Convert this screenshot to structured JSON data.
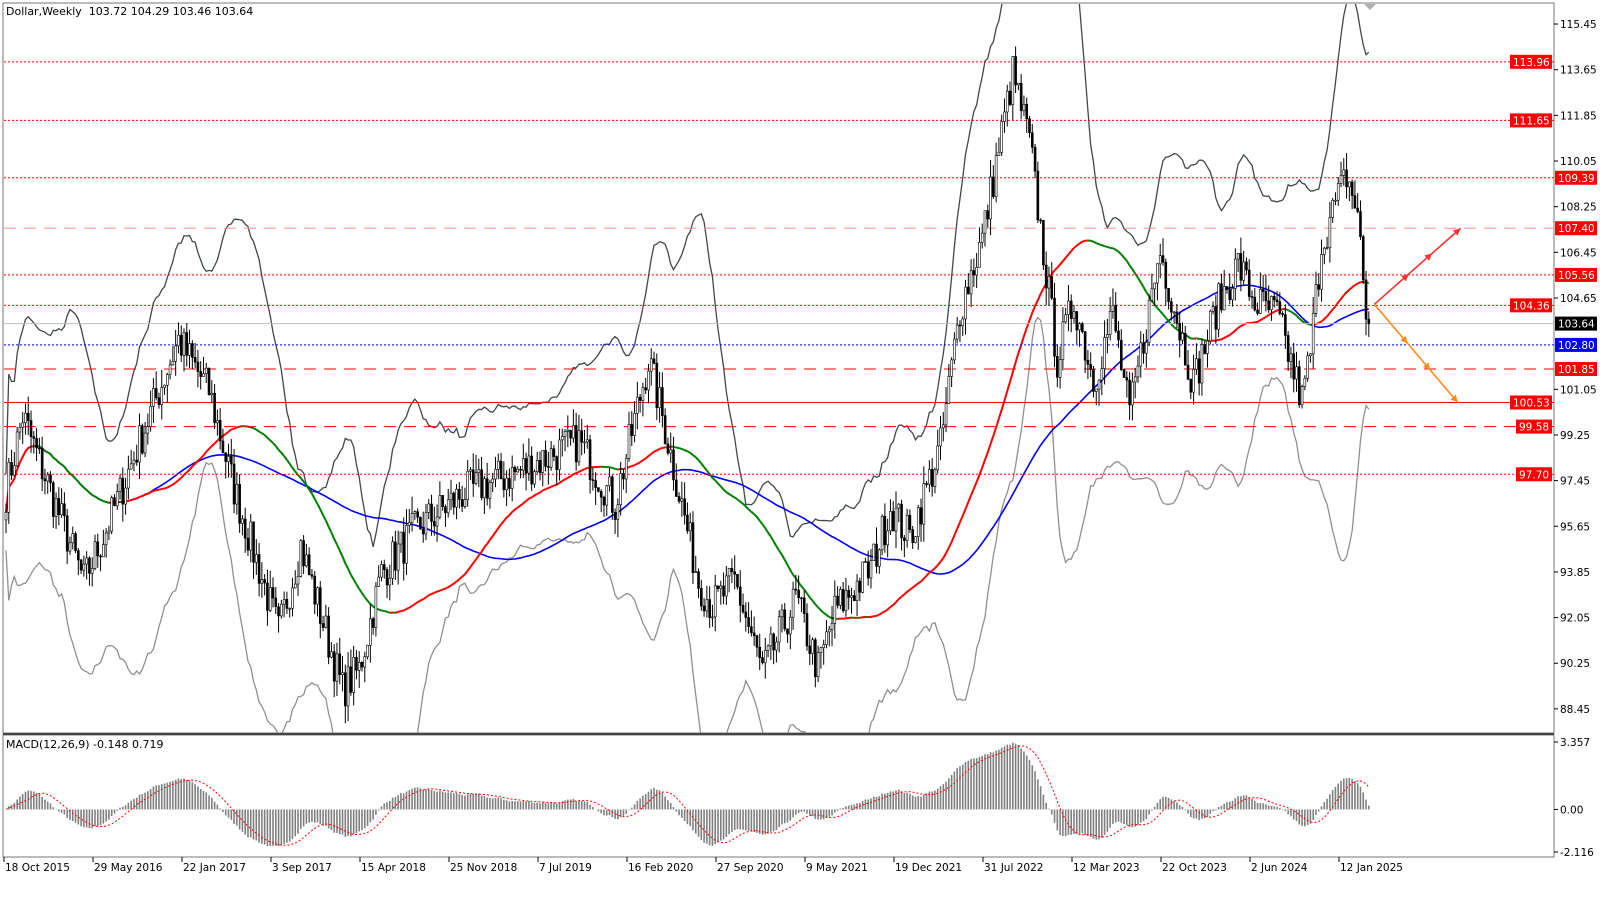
{
  "header": {
    "symbol_timeframe": "Dollar,Weekly",
    "ohlc": "103.72 104.29 103.46 103.64"
  },
  "macd": {
    "label": "MACD(12,26,9) -0.148 0.719",
    "params": [
      12,
      26,
      9
    ],
    "main": -0.148,
    "signal": 0.719
  },
  "colors": {
    "ma_rising": "#ff0000",
    "ma_falling": "#008000",
    "ma_long": "#0000ff",
    "band_upper": "#404848",
    "band_lower": "#909090",
    "level": "#ff0000",
    "support_blue": "#0000ff",
    "arrow_up": "#ff3030",
    "arrow_down": "#ff8c1a",
    "bars": "#000000"
  },
  "chart_data": {
    "type": "candlestick",
    "title": "Dollar,Weekly",
    "ylim": [
      87.5,
      116.24
    ],
    "grid": false,
    "price_axis_ticks": [
      "115.45",
      "113.65",
      "111.85",
      "110.05",
      "108.25",
      "106.45",
      "104.65",
      "101.05",
      "99.25",
      "97.45",
      "95.65",
      "93.85",
      "92.05",
      "90.25",
      "88.45"
    ],
    "macd_axis_ticks": [
      "3.357",
      "0.00",
      "-2.116"
    ],
    "macd_ylim": [
      -2.116,
      3.357
    ],
    "date_ticks": [
      "18 Oct 2015",
      "29 May 2016",
      "22 Jan 2017",
      "3 Sep 2017",
      "15 Apr 2018",
      "25 Nov 2018",
      "7 Jul 2019",
      "16 Feb 2020",
      "27 Sep 2020",
      "9 May 2021",
      "19 Dec 2021",
      "31 Jul 2022",
      "12 Mar 2023",
      "22 Oct 2023",
      "2 Jun 2024",
      "12 Jan 2025"
    ],
    "start_date": "2015-10-18",
    "approx_closes": [
      [
        "2015-10-18",
        97.0
      ],
      [
        "2015-11-29",
        100.0
      ],
      [
        "2016-05-01",
        93.5
      ],
      [
        "2016-06-26",
        95.5
      ],
      [
        "2016-12-25",
        103.0
      ],
      [
        "2017-03-12",
        101.0
      ],
      [
        "2017-05-07",
        97.5
      ],
      [
        "2017-09-03",
        91.5
      ],
      [
        "2017-10-29",
        94.9
      ],
      [
        "2018-02-11",
        89.2
      ],
      [
        "2018-03-25",
        90.0
      ],
      [
        "2018-05-20",
        93.8
      ],
      [
        "2018-08-12",
        95.5
      ],
      [
        "2018-12-16",
        97.0
      ],
      [
        "2019-04-28",
        97.8
      ],
      [
        "2019-09-29",
        99.0
      ],
      [
        "2019-12-29",
        96.5
      ],
      [
        "2020-03-22",
        102.2
      ],
      [
        "2020-04-26",
        100.0
      ],
      [
        "2020-07-26",
        93.5
      ],
      [
        "2020-08-30",
        92.5
      ],
      [
        "2020-10-25",
        93.5
      ],
      [
        "2021-01-03",
        89.9
      ],
      [
        "2021-03-28",
        92.8
      ],
      [
        "2021-05-23",
        90.0
      ],
      [
        "2021-07-04",
        92.3
      ],
      [
        "2021-10-03",
        94.0
      ],
      [
        "2021-11-21",
        96.4
      ],
      [
        "2022-01-09",
        95.2
      ],
      [
        "2022-03-27",
        98.8
      ],
      [
        "2022-05-15",
        104.2
      ],
      [
        "2022-07-10",
        107.0
      ],
      [
        "2022-09-25",
        113.5
      ],
      [
        "2022-11-06",
        110.8
      ],
      [
        "2023-01-15",
        102.2
      ],
      [
        "2023-02-26",
        104.6
      ],
      [
        "2023-04-16",
        101.4
      ],
      [
        "2023-06-04",
        104.0
      ],
      [
        "2023-07-16",
        100.0
      ],
      [
        "2023-09-03",
        104.2
      ],
      [
        "2023-10-01",
        106.5
      ],
      [
        "2023-12-24",
        101.3
      ],
      [
        "2024-02-18",
        104.2
      ],
      [
        "2024-04-14",
        106.0
      ],
      [
        "2024-05-26",
        104.5
      ],
      [
        "2024-07-21",
        104.0
      ],
      [
        "2024-09-22",
        100.6
      ],
      [
        "2024-10-13",
        102.5
      ],
      [
        "2024-11-10",
        106.8
      ],
      [
        "2025-01-12",
        109.5
      ],
      [
        "2025-02-09",
        108.0
      ],
      [
        "2025-03-02",
        104.0
      ],
      [
        "2025-03-09",
        103.64
      ]
    ],
    "levels": [
      {
        "price": 113.96,
        "label": "113.96",
        "style": "dotted",
        "color": "#ff0000"
      },
      {
        "price": 111.65,
        "label": "111.65",
        "style": "dotted",
        "color": "#ff0000"
      },
      {
        "price": 109.39,
        "label": "109.39",
        "style": "dotted",
        "color": "#ff0000"
      },
      {
        "price": 107.4,
        "label": "107.40",
        "style": "dashed",
        "color": "#ff9090"
      },
      {
        "price": 105.56,
        "label": "105.56",
        "style": "dotted",
        "color": "#ff0000"
      },
      {
        "price": 104.36,
        "label": "104.36",
        "style": "dotted",
        "color": "#ff0000"
      },
      {
        "price": 103.64,
        "label": "103.64",
        "style": "solid",
        "color": "#c0c0c0",
        "tag": "#000000"
      },
      {
        "price": 102.8,
        "label": "102.80",
        "style": "dotted",
        "color": "#0000ff",
        "tag": "#0000ff"
      },
      {
        "price": 101.85,
        "label": "101.85",
        "style": "dashed",
        "color": "#ff0000"
      },
      {
        "price": 100.53,
        "label": "100.53",
        "style": "solid",
        "color": "#ff0000"
      },
      {
        "price": 99.58,
        "label": "99.58",
        "style": "dashed",
        "color": "#ff0000"
      },
      {
        "price": 97.7,
        "label": "97.70",
        "style": "dotted",
        "color": "#ff0000"
      }
    ],
    "projections": [
      {
        "from": [
          "2025-03-23",
          104.4
        ],
        "to": [
          "2025-10-26",
          107.4
        ],
        "color": "#ff3030"
      },
      {
        "from": [
          "2025-03-23",
          104.4
        ],
        "to": [
          "2025-10-19",
          100.53
        ],
        "color": "#ff8c1a"
      }
    ]
  }
}
